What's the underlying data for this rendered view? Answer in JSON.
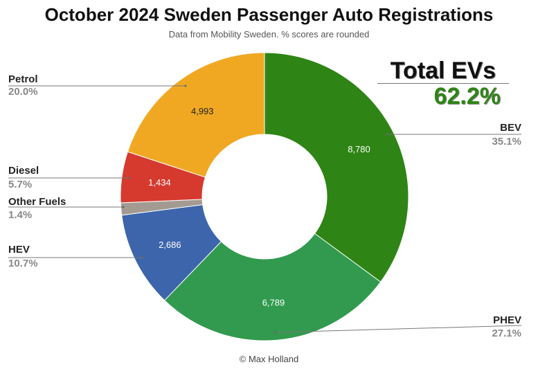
{
  "chart_data": {
    "type": "pie",
    "title": "October 2024 Sweden Passenger Auto Registrations",
    "subtitle": "Data from Mobility Sweden. % scores are rounded",
    "credit": "© Max Holland",
    "slices": [
      {
        "name": "BEV",
        "value": 8780,
        "value_label": "8,780",
        "percent": "35.1%",
        "color": "#2e8515"
      },
      {
        "name": "PHEV",
        "value": 6789,
        "value_label": "6,789",
        "percent": "27.1%",
        "color": "#319a4e"
      },
      {
        "name": "HEV",
        "value": 2686,
        "value_label": "2,686",
        "percent": "10.7%",
        "color": "#3c65ab"
      },
      {
        "name": "Other Fuels",
        "value": 344,
        "value_label": "",
        "percent": "1.4%",
        "color": "#a39a92"
      },
      {
        "name": "Diesel",
        "value": 1434,
        "value_label": "1,434",
        "percent": "5.7%",
        "color": "#d63a2f"
      },
      {
        "name": "Petrol",
        "value": 4993,
        "value_label": "4,993",
        "percent": "20.0%",
        "color": "#f0a823"
      }
    ],
    "start": "12 o'clock",
    "direction": "clockwise",
    "inner_hole": true
  },
  "annotation": {
    "label": "Total EVs",
    "value": "62.2%",
    "value_color": "#2e8515"
  }
}
